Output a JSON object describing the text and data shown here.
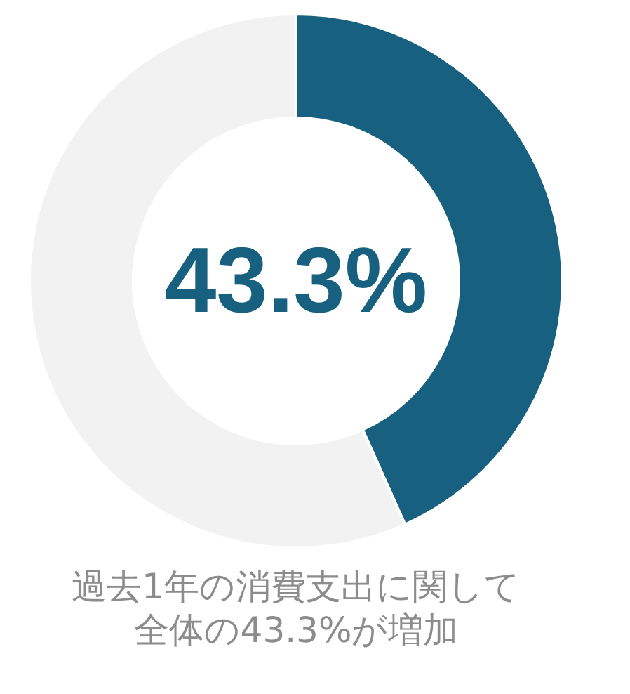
{
  "chart_data": {
    "type": "donut",
    "title": "過去1年の消費支出に関して",
    "subtitle": "全体の43.3%が増加",
    "categories": [
      null,
      null
    ],
    "values": [
      43.3,
      56.7
    ],
    "colors": [
      "#17607f",
      "#f2f2f2"
    ],
    "value_labels": [
      "43.3%",
      null
    ],
    "legend": false
  }
}
